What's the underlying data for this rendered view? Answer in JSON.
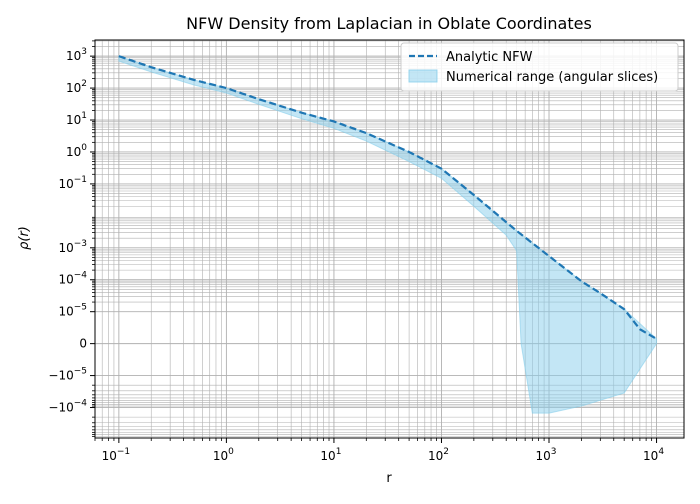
{
  "chart_data": {
    "type": "line",
    "title": "NFW Density from Laplacian in Oblate Coordinates",
    "xlabel": "r",
    "ylabel": "ρ(r)",
    "xscale": "log",
    "yscale": "symlog",
    "symlog_linthresh": 1e-05,
    "xlim": [
      0.06,
      18000
    ],
    "ylim": [
      -0.0009,
      3200
    ],
    "grid": "both (major and minor)",
    "legend_position": "upper right",
    "x_ticks": [
      {
        "value": 0.1,
        "base": "10",
        "exp": "−1"
      },
      {
        "value": 1,
        "base": "10",
        "exp": "0"
      },
      {
        "value": 10,
        "base": "10",
        "exp": "1"
      },
      {
        "value": 100,
        "base": "10",
        "exp": "2"
      },
      {
        "value": 1000,
        "base": "10",
        "exp": "3"
      },
      {
        "value": 10000,
        "base": "10",
        "exp": "4"
      }
    ],
    "y_ticks": [
      {
        "value": 1000,
        "base": "10",
        "exp": "3"
      },
      {
        "value": 100,
        "base": "10",
        "exp": "2"
      },
      {
        "value": 10,
        "base": "10",
        "exp": "1"
      },
      {
        "value": 1,
        "base": "10",
        "exp": "0"
      },
      {
        "value": 0.1,
        "base": "10",
        "exp": "−1"
      },
      {
        "value": 0.001,
        "base": "10",
        "exp": "−3"
      },
      {
        "value": 0.0001,
        "base": "10",
        "exp": "−4"
      },
      {
        "value": 1e-05,
        "base": "10",
        "exp": "−5"
      },
      {
        "value": 0,
        "base": "0",
        "exp": ""
      },
      {
        "value": -1e-05,
        "base": "−10",
        "exp": "−5"
      },
      {
        "value": -0.0001,
        "base": "−10",
        "exp": "−4"
      }
    ],
    "series": [
      {
        "name": "Analytic NFW",
        "style": "dashed",
        "color": "#1f77b4",
        "x": [
          0.1,
          0.2,
          0.5,
          1,
          2,
          5,
          10,
          20,
          50,
          100,
          200,
          500,
          1000,
          2000,
          3000,
          5000,
          7000,
          10000
        ],
        "y": [
          1000,
          450,
          180,
          100,
          45,
          17,
          9,
          3.9,
          1.0,
          0.3,
          0.045,
          0.0034,
          0.00055,
          9e-05,
          3.8e-05,
          1.2e-05,
          4.5e-06,
          1.5e-06
        ]
      }
    ],
    "band": {
      "name": "Numerical range (angular slices)",
      "color": "#87ceeb",
      "x": [
        0.1,
        0.2,
        0.5,
        1,
        2,
        5,
        10,
        20,
        50,
        100,
        200,
        400,
        500,
        550,
        700,
        1000,
        2000,
        5000,
        10000
      ],
      "upper": [
        1000,
        450,
        180,
        100,
        45,
        17,
        9,
        3.9,
        1.0,
        0.3,
        0.045,
        0.006,
        0.0034,
        0.0027,
        0.0014,
        0.00055,
        9e-05,
        1.2e-05,
        1.5e-06
      ],
      "lower": [
        700,
        320,
        125,
        70,
        31,
        11,
        5.5,
        2.2,
        0.5,
        0.15,
        0.02,
        0.0025,
        0.0008,
        0.0,
        -0.00015,
        -0.00015,
        -9e-05,
        -3.5e-05,
        0.0
      ]
    }
  }
}
